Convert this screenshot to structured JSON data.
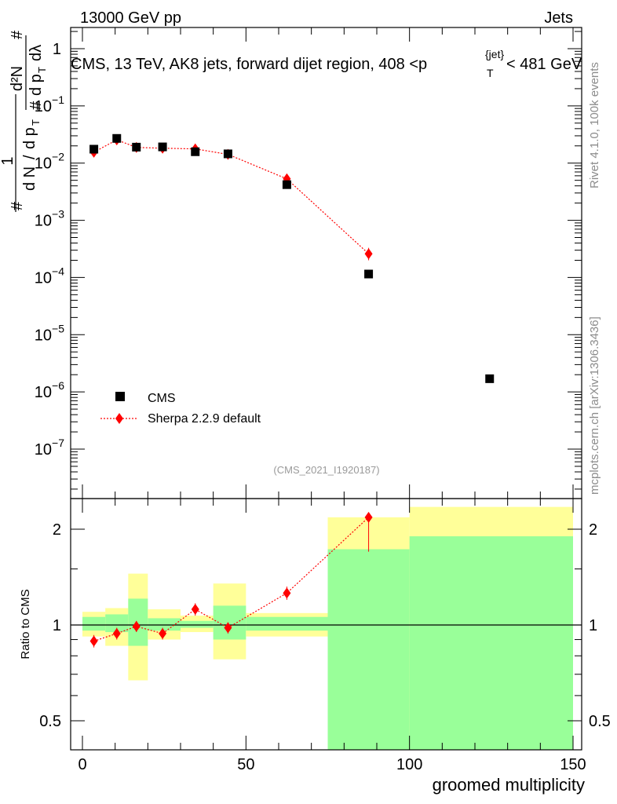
{
  "header": {
    "left": "13000 GeV pp",
    "right": "Jets"
  },
  "side_labels": {
    "rivet": "Rivet 4.1.0,  100k events",
    "mcplots": "mcplots.cern.ch [arXiv:1306.3436]"
  },
  "chart_data": [
    {
      "type": "scatter",
      "panel": "main",
      "title": "CMS, 13 TeV, AK8 jets, forward dijet region, 408 <p_T^{jet}< 481 GeV",
      "title_parts": {
        "pre": "CMS, 13 TeV, AK8 jets, forward dijet region, 408 <p",
        "sub": "T",
        "sup": "{jet}",
        "post": "< 481 GeV"
      },
      "ylabel": "1/(d N / d p_T) d²N/(d p_T d λ)",
      "ylabel_parts": {
        "one": "1",
        "hash": "#",
        "dN": "d N",
        "slash": "/",
        "dpt": "d p",
        "T": "T",
        "num_hash": "#",
        "num_d2N": "d²N",
        "den_hash": "#",
        "den_dpt": "d p",
        "den_T": "T",
        "den_dlambda": "dλ"
      },
      "yscale": "log",
      "ylim": [
        2e-08,
        2.5
      ],
      "yticks": [
        {
          "value": 1,
          "label": "1"
        },
        {
          "value": 0.1,
          "label": "10^{-1}",
          "base": "10",
          "exp": "−1"
        },
        {
          "value": 0.01,
          "label": "10^{-2}",
          "base": "10",
          "exp": "−2"
        },
        {
          "value": 0.001,
          "label": "10^{-3}",
          "base": "10",
          "exp": "−3"
        },
        {
          "value": 0.0001,
          "label": "10^{-4}",
          "base": "10",
          "exp": "−4"
        },
        {
          "value": 1e-05,
          "label": "10^{-5}",
          "base": "10",
          "exp": "−5"
        },
        {
          "value": 1e-06,
          "label": "10^{-6}",
          "base": "10",
          "exp": "−6"
        },
        {
          "value": 1e-07,
          "label": "10^{-7}",
          "base": "10",
          "exp": "−7"
        }
      ],
      "xlim": [
        -3,
        151
      ],
      "series": [
        {
          "name": "CMS",
          "marker": "square",
          "color": "#000000",
          "points": [
            {
              "x": 3.5,
              "y": 0.0175
            },
            {
              "x": 10.5,
              "y": 0.027
            },
            {
              "x": 16.5,
              "y": 0.019
            },
            {
              "x": 24.5,
              "y": 0.0192
            },
            {
              "x": 34.5,
              "y": 0.0158
            },
            {
              "x": 44.5,
              "y": 0.0145
            },
            {
              "x": 62.5,
              "y": 0.0042
            },
            {
              "x": 87.5,
              "y": 0.000115
            },
            {
              "x": 124.5,
              "y": 1.7e-06
            }
          ]
        },
        {
          "name": "Sherpa 2.2.9 default",
          "marker": "diamond",
          "line": "dotted",
          "color": "#ff0000",
          "points": [
            {
              "x": 3.5,
              "y": 0.0155,
              "err_lo": 0.0145,
              "err_hi": 0.0165
            },
            {
              "x": 10.5,
              "y": 0.0255,
              "err_lo": 0.024,
              "err_hi": 0.027
            },
            {
              "x": 16.5,
              "y": 0.0188,
              "err_lo": 0.018,
              "err_hi": 0.0197
            },
            {
              "x": 24.5,
              "y": 0.0182,
              "err_lo": 0.0174,
              "err_hi": 0.019
            },
            {
              "x": 34.5,
              "y": 0.0177,
              "err_lo": 0.0169,
              "err_hi": 0.0186
            },
            {
              "x": 44.5,
              "y": 0.0142,
              "err_lo": 0.0135,
              "err_hi": 0.0149
            },
            {
              "x": 62.5,
              "y": 0.0053,
              "err_lo": 0.0049,
              "err_hi": 0.0057
            },
            {
              "x": 87.5,
              "y": 0.00026,
              "err_lo": 0.0002,
              "err_hi": 0.00033
            }
          ]
        }
      ],
      "legend": {
        "position": "lower-left",
        "entries": [
          "CMS",
          "Sherpa 2.2.9 default"
        ]
      },
      "annotation": "(CMS_2021_I1920187)"
    },
    {
      "type": "scatter",
      "panel": "ratio",
      "ylabel": "Ratio to CMS",
      "xlabel": "groomed multiplicity",
      "yscale": "log",
      "ylim": [
        0.42,
        2.35
      ],
      "xlim": [
        -3,
        151
      ],
      "xticks": [
        {
          "value": 0,
          "label": "0"
        },
        {
          "value": 50,
          "label": "50"
        },
        {
          "value": 100,
          "label": "100"
        },
        {
          "value": 150,
          "label": "150"
        }
      ],
      "yticks": [
        {
          "value": 0.5,
          "label": "0.5"
        },
        {
          "value": 1,
          "label": "1"
        },
        {
          "value": 2,
          "label": "2"
        }
      ],
      "reference_line": 1,
      "uncertainty_bands": [
        {
          "x0": 0,
          "x1": 7,
          "yellow": [
            0.92,
            1.1
          ],
          "green": [
            0.96,
            1.06
          ]
        },
        {
          "x0": 7,
          "x1": 14,
          "yellow": [
            0.86,
            1.13
          ],
          "green": [
            0.95,
            1.08
          ]
        },
        {
          "x0": 14,
          "x1": 20,
          "yellow": [
            0.67,
            1.45
          ],
          "green": [
            0.86,
            1.21
          ]
        },
        {
          "x0": 20,
          "x1": 30,
          "yellow": [
            0.9,
            1.12
          ],
          "green": [
            0.96,
            1.05
          ]
        },
        {
          "x0": 30,
          "x1": 40,
          "yellow": [
            0.95,
            1.07
          ],
          "green": [
            0.98,
            1.03
          ]
        },
        {
          "x0": 40,
          "x1": 50,
          "yellow": [
            0.78,
            1.35
          ],
          "green": [
            0.9,
            1.15
          ]
        },
        {
          "x0": 50,
          "x1": 75,
          "yellow": [
            0.92,
            1.09
          ],
          "green": [
            0.96,
            1.06
          ]
        },
        {
          "x0": 75,
          "x1": 100,
          "yellow": [
            0.37,
            2.18
          ],
          "green": [
            0.37,
            1.73
          ]
        },
        {
          "x0": 100,
          "x1": 150,
          "yellow": [
            0.37,
            2.35
          ],
          "green": [
            0.37,
            1.9
          ]
        }
      ],
      "series": [
        {
          "name": "Sherpa 2.2.9 default",
          "marker": "diamond",
          "line": "dotted",
          "color": "#ff0000",
          "points": [
            {
              "x": 3.5,
              "y": 0.89,
              "err_lo": 0.85,
              "err_hi": 0.93
            },
            {
              "x": 10.5,
              "y": 0.94,
              "err_lo": 0.9,
              "err_hi": 0.98
            },
            {
              "x": 16.5,
              "y": 0.99,
              "err_lo": 0.95,
              "err_hi": 1.03
            },
            {
              "x": 24.5,
              "y": 0.94,
              "err_lo": 0.9,
              "err_hi": 0.98
            },
            {
              "x": 34.5,
              "y": 1.12,
              "err_lo": 1.07,
              "err_hi": 1.17
            },
            {
              "x": 44.5,
              "y": 0.98,
              "err_lo": 0.94,
              "err_hi": 1.02
            },
            {
              "x": 62.5,
              "y": 1.26,
              "err_lo": 1.2,
              "err_hi": 1.32
            },
            {
              "x": 87.5,
              "y": 2.18,
              "err_lo": 1.7,
              "err_hi": 2.25
            }
          ]
        }
      ]
    }
  ]
}
